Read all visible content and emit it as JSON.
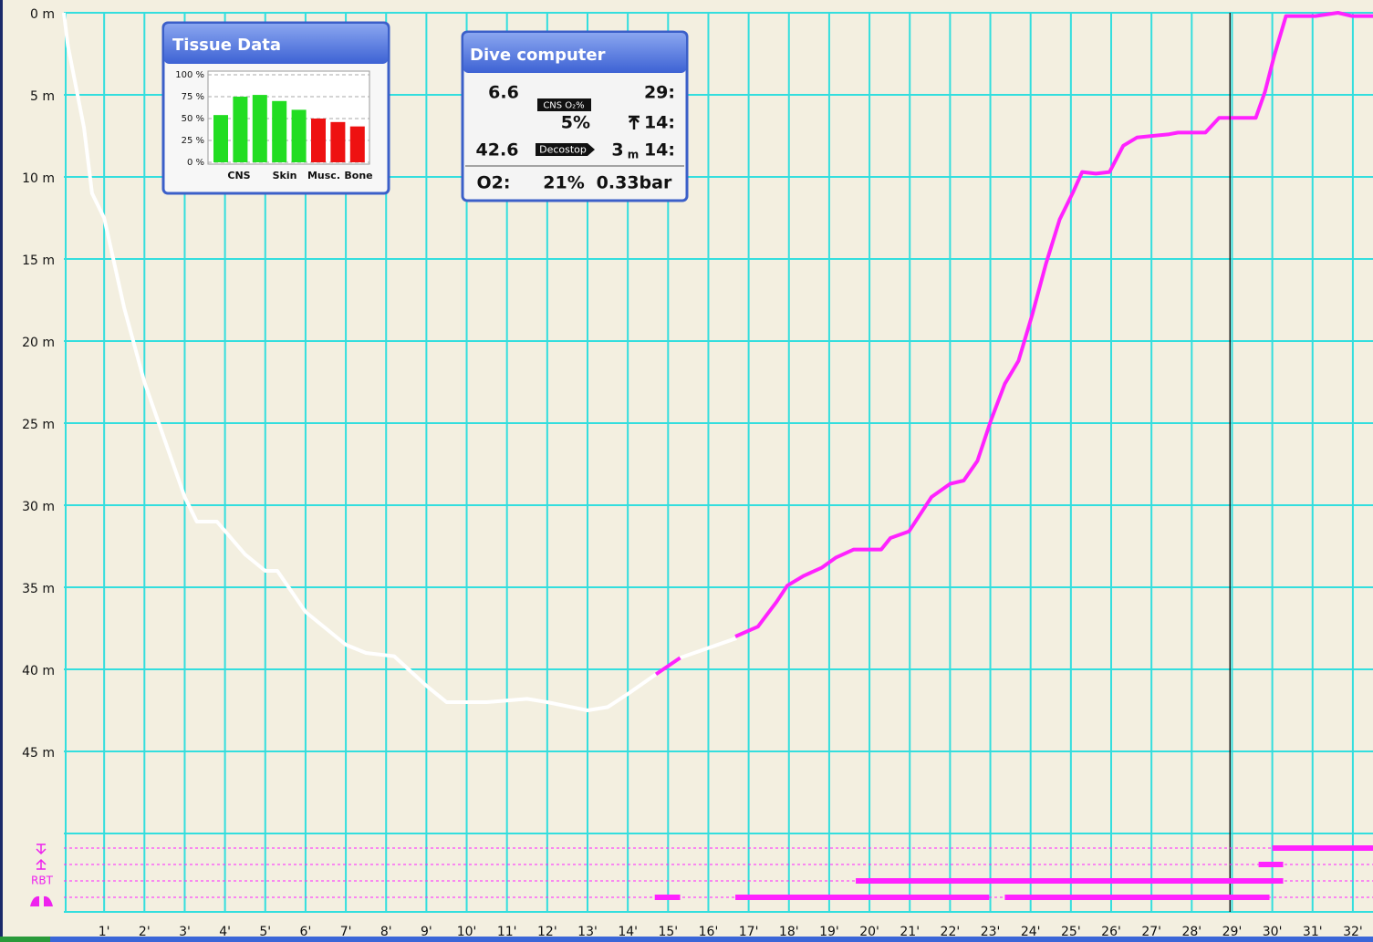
{
  "chart_data": {
    "type": "line",
    "xlim": [
      0,
      32.5
    ],
    "ylim": [
      0,
      50
    ],
    "grid": true,
    "xticks": [
      {
        "value": 1,
        "label": "1'"
      },
      {
        "value": 2,
        "label": "2'"
      },
      {
        "value": 3,
        "label": "3'"
      },
      {
        "value": 4,
        "label": "4'"
      },
      {
        "value": 5,
        "label": "5'"
      },
      {
        "value": 6,
        "label": "6'"
      },
      {
        "value": 7,
        "label": "7'"
      },
      {
        "value": 8,
        "label": "8'"
      },
      {
        "value": 9,
        "label": "9'"
      },
      {
        "value": 10,
        "label": "10'"
      },
      {
        "value": 11,
        "label": "11'"
      },
      {
        "value": 12,
        "label": "12'"
      },
      {
        "value": 13,
        "label": "13'"
      },
      {
        "value": 14,
        "label": "14'"
      },
      {
        "value": 15,
        "label": "15'"
      },
      {
        "value": 16,
        "label": "16'"
      },
      {
        "value": 17,
        "label": "17'"
      },
      {
        "value": 18,
        "label": "18'"
      },
      {
        "value": 19,
        "label": "19'"
      },
      {
        "value": 20,
        "label": "20'"
      },
      {
        "value": 21,
        "label": "21'"
      },
      {
        "value": 22,
        "label": "22'"
      },
      {
        "value": 23,
        "label": "23'"
      },
      {
        "value": 24,
        "label": "24'"
      },
      {
        "value": 25,
        "label": "25'"
      },
      {
        "value": 26,
        "label": "26'"
      },
      {
        "value": 27,
        "label": "27'"
      },
      {
        "value": 28,
        "label": "28'"
      },
      {
        "value": 29,
        "label": "29'"
      },
      {
        "value": 30,
        "label": "30'"
      },
      {
        "value": 31,
        "label": "31'"
      },
      {
        "value": 32,
        "label": "32'"
      }
    ],
    "yticks": [
      {
        "value": 0,
        "label": "0 m"
      },
      {
        "value": 5,
        "label": "5 m"
      },
      {
        "value": 10,
        "label": "10 m"
      },
      {
        "value": 15,
        "label": "15 m"
      },
      {
        "value": 20,
        "label": "20 m"
      },
      {
        "value": 25,
        "label": "25 m"
      },
      {
        "value": 30,
        "label": "30 m"
      },
      {
        "value": 35,
        "label": "35 m"
      },
      {
        "value": 40,
        "label": "40 m"
      },
      {
        "value": 45,
        "label": "45 m"
      }
    ],
    "series": [
      {
        "color": "#ffffff",
        "x": [
          0,
          0.1,
          0.5,
          0.7,
          1,
          1.5,
          2,
          2.5,
          3,
          3.3,
          3.8,
          4.5,
          5,
          5.3,
          6,
          7,
          7.5,
          8.2,
          9,
          9.5,
          10.5,
          11.5,
          12,
          13,
          13.5,
          14,
          14.7,
          15,
          15.3,
          16.7
        ],
        "values": [
          0,
          2,
          7,
          11,
          12.5,
          18,
          22.5,
          26,
          29.5,
          31,
          31,
          33,
          34,
          34,
          36.5,
          38.5,
          39,
          39.2,
          41,
          42,
          42,
          41.8,
          42,
          42.5,
          42.3,
          41.5,
          40.3,
          null,
          39.3,
          38.1
        ]
      },
      {
        "color": "#ff22ff",
        "x": [
          14.7,
          15.3,
          16,
          16.67,
          17.23,
          17.69,
          17.96,
          18.37,
          18.82,
          19.16,
          19.61,
          20.29,
          20.52,
          20.98,
          21.54,
          22.0,
          22.34,
          22.68,
          23.02,
          23.36,
          23.7,
          24.04,
          24.38,
          24.72,
          25.06,
          25.28,
          25.62,
          25.96,
          26.3,
          26.64,
          27.44,
          27.66,
          28.34,
          28.68,
          29.59,
          29.82,
          30.05,
          30.34,
          31.07,
          31.63,
          31.97,
          32.5
        ],
        "values": [
          40.3,
          39.3,
          null,
          38.0,
          37.4,
          35.9,
          34.9,
          34.3,
          33.8,
          33.2,
          32.7,
          32.7,
          32.0,
          31.6,
          29.5,
          28.7,
          28.5,
          27.3,
          24.8,
          22.6,
          21.2,
          18.4,
          15.3,
          12.6,
          10.9,
          9.7,
          9.8,
          9.7,
          8.1,
          7.6,
          7.4,
          7.3,
          7.3,
          6.4,
          6.4,
          4.8,
          2.6,
          0.2,
          0.2,
          0,
          0.2,
          0.2
        ]
      }
    ],
    "cursor_x": 28.95,
    "lanes_label": "RBT",
    "warning_color": "#ff22ff",
    "warning_lanes": [
      [
        [
          30.0,
          32.5
        ]
      ],
      [
        [
          29.66,
          30.27
        ]
      ],
      [
        [
          19.66,
          30.27
        ]
      ],
      [
        [
          14.67,
          15.3
        ],
        [
          16.67,
          22.97
        ],
        [
          23.36,
          29.93
        ]
      ]
    ]
  },
  "tissue_data": {
    "type": "bar",
    "title": "Tissue Data",
    "values": [
      54,
      75,
      77,
      70,
      60,
      50,
      46,
      41
    ],
    "colors": [
      "#22dd22",
      "#22dd22",
      "#22dd22",
      "#22dd22",
      "#22dd22",
      "#ee1111",
      "#ee1111",
      "#ee1111"
    ],
    "labels": [
      "CNS",
      "Skin",
      "Musc.",
      "Bone"
    ],
    "ylim": [
      0,
      100
    ],
    "yticks": [
      {
        "value": 0,
        "label": "0 %"
      },
      {
        "value": 25,
        "label": "25 %"
      },
      {
        "value": 50,
        "label": "50 %"
      },
      {
        "value": 75,
        "label": "75 %"
      },
      {
        "value": 100,
        "label": "100 %"
      }
    ]
  },
  "dive_computer": {
    "title": "Dive computer",
    "top_left": "6.6",
    "top_right": "29:",
    "cns_badge": "CNS O₂%",
    "cns_value": "5%",
    "ceiling_time": "14:",
    "mid_left": "42.6",
    "deco_badge": "Decostop",
    "deco_depth": "3",
    "deco_unit": "m",
    "deco_time": "14:",
    "o2_label": "O2:",
    "o2_percent": "21%",
    "o2_pressure": "0.33bar"
  }
}
